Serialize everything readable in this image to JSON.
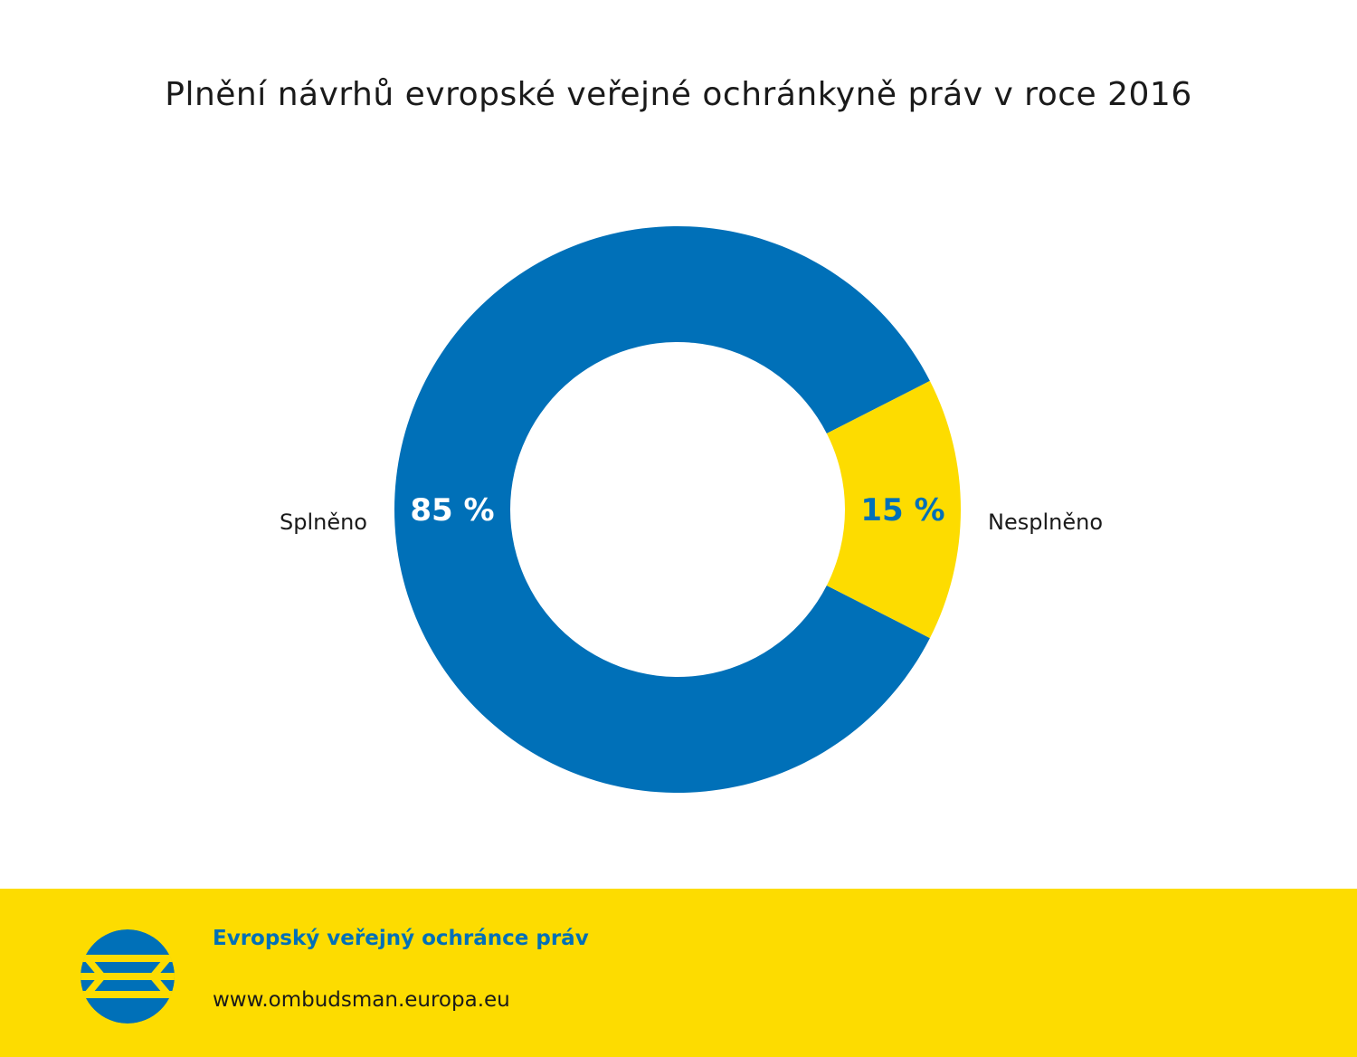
{
  "colors": {
    "primary": "#0070b8",
    "accent": "#fddc00",
    "text": "#1a1a1a",
    "background": "#ffffff"
  },
  "chart_data": {
    "type": "pie",
    "variant": "donut",
    "title": "Plnění návrhů evropské veřejné ochránkyně práv v roce 2016",
    "categories": [
      "Splněno",
      "Nesplněno"
    ],
    "values": [
      85,
      15
    ],
    "value_labels": [
      "85 %",
      "15 %"
    ],
    "colors": [
      "#0070b8",
      "#fddc00"
    ],
    "value_label_colors": [
      "#ffffff",
      "#0070b8"
    ],
    "legend": "none"
  },
  "footer": {
    "org_name": "Evropský veřejný ochránce práv",
    "url": "www.ombudsman.europa.eu",
    "logo_icon": "european-ombudsman-logo-icon"
  }
}
